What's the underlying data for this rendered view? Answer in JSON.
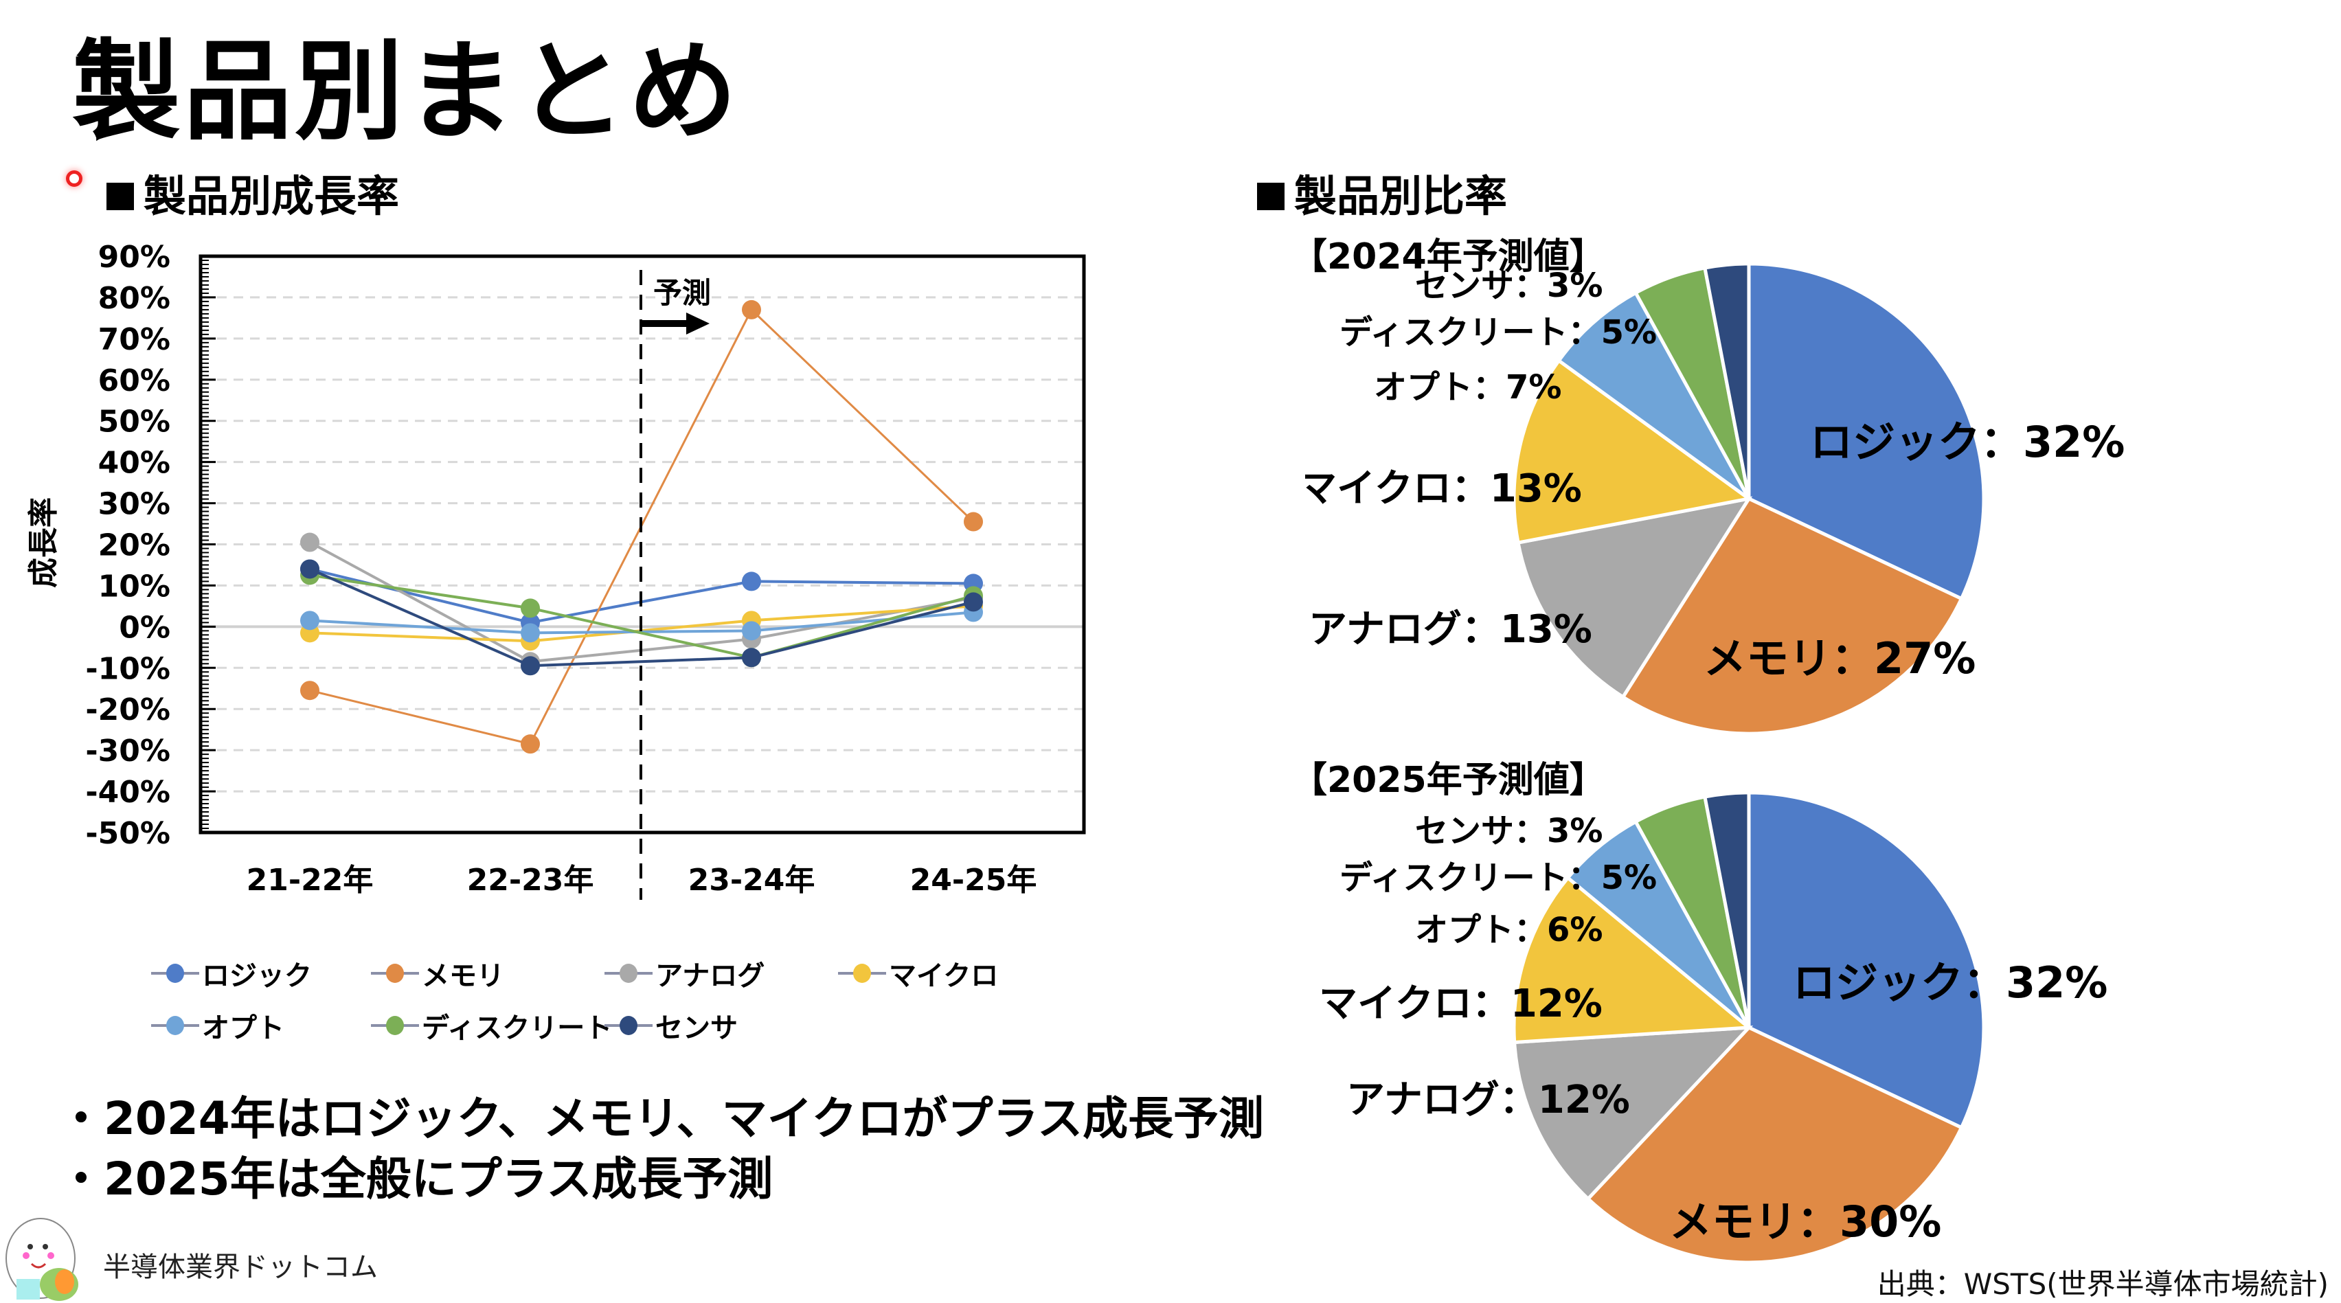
{
  "page": {
    "title": "製品別まとめ",
    "growth_section_title": "製品別成長率",
    "ratio_section_title": "製品別比率",
    "bullets": [
      "・2024年はロジック、メモリ、マイクロがプラス成長予測",
      "・2025年は全般にプラス成長予測"
    ],
    "footer_brand": "半導体業界ドットコム",
    "source": "出典：WSTS(世界半導体市場統計)"
  },
  "colors": {
    "logic": "#4f7cc8",
    "memory": "#e08a45",
    "analog": "#a9a9a9",
    "micro": "#f2c53d",
    "opto": "#6fa4d8",
    "discrete": "#7caf56",
    "sensor": "#2e4a7d"
  },
  "chart_data": [
    {
      "type": "line",
      "title": "製品別成長率",
      "xlabel": "",
      "ylabel": "成長率",
      "categories": [
        "21-22年",
        "22-23年",
        "23-24年",
        "24-25年"
      ],
      "yticks": [
        "90%",
        "80%",
        "70%",
        "60%",
        "50%",
        "40%",
        "30%",
        "20%",
        "10%",
        "0%",
        "-10%",
        "-20%",
        "-30%",
        "-40%",
        "-50%"
      ],
      "ylim": [
        -50,
        90
      ],
      "grid": true,
      "forecast_marker": {
        "label": "予測",
        "after_category_index": 1
      },
      "legend_position": "bottom",
      "series": [
        {
          "key": "logic",
          "name": "ロジック",
          "values": [
            14,
            1,
            11,
            10.5
          ]
        },
        {
          "key": "memory",
          "name": "メモリ",
          "values": [
            -15.5,
            -28.5,
            77,
            25.5
          ]
        },
        {
          "key": "analog",
          "name": "アナログ",
          "values": [
            20.5,
            -8.5,
            -3,
            7
          ]
        },
        {
          "key": "micro",
          "name": "マイクロ",
          "values": [
            -1.5,
            -3.5,
            1.5,
            5
          ]
        },
        {
          "key": "opto",
          "name": "オプト",
          "values": [
            1.5,
            -1.5,
            -1,
            3.5
          ]
        },
        {
          "key": "discrete",
          "name": "ディスクリート",
          "values": [
            12.5,
            4.5,
            -7.5,
            7.5
          ]
        },
        {
          "key": "sensor",
          "name": "センサ",
          "values": [
            14,
            -9.5,
            -7.5,
            6
          ]
        }
      ]
    },
    {
      "type": "pie",
      "title": "【2024年予測値】",
      "slices": [
        {
          "key": "logic",
          "name": "ロジック",
          "value": 32,
          "label": "ロジック：32%"
        },
        {
          "key": "memory",
          "name": "メモリ",
          "value": 27,
          "label": "メモリ：27%"
        },
        {
          "key": "analog",
          "name": "アナログ",
          "value": 13,
          "label": "アナログ：13%"
        },
        {
          "key": "micro",
          "name": "マイクロ",
          "value": 13,
          "label": "マイクロ：13%"
        },
        {
          "key": "opto",
          "name": "オプト",
          "value": 7,
          "label": "オプト：7%"
        },
        {
          "key": "discrete",
          "name": "ディスクリート",
          "value": 5,
          "label": "ディスクリート：5%"
        },
        {
          "key": "sensor",
          "name": "センサ",
          "value": 3,
          "label": "センサ：3%"
        }
      ]
    },
    {
      "type": "pie",
      "title": "【2025年予測値】",
      "slices": [
        {
          "key": "logic",
          "name": "ロジック",
          "value": 32,
          "label": "ロジック：32%"
        },
        {
          "key": "memory",
          "name": "メモリ",
          "value": 30,
          "label": "メモリ：30%"
        },
        {
          "key": "analog",
          "name": "アナログ",
          "value": 12,
          "label": "アナログ：12%"
        },
        {
          "key": "micro",
          "name": "マイクロ",
          "value": 12,
          "label": "マイクロ：12%"
        },
        {
          "key": "opto",
          "name": "オプト",
          "value": 6,
          "label": "オプト：6%"
        },
        {
          "key": "discrete",
          "name": "ディスクリート",
          "value": 5,
          "label": "ディスクリート：5%"
        },
        {
          "key": "sensor",
          "name": "センサ",
          "value": 3,
          "label": "センサ：3%"
        }
      ]
    }
  ]
}
